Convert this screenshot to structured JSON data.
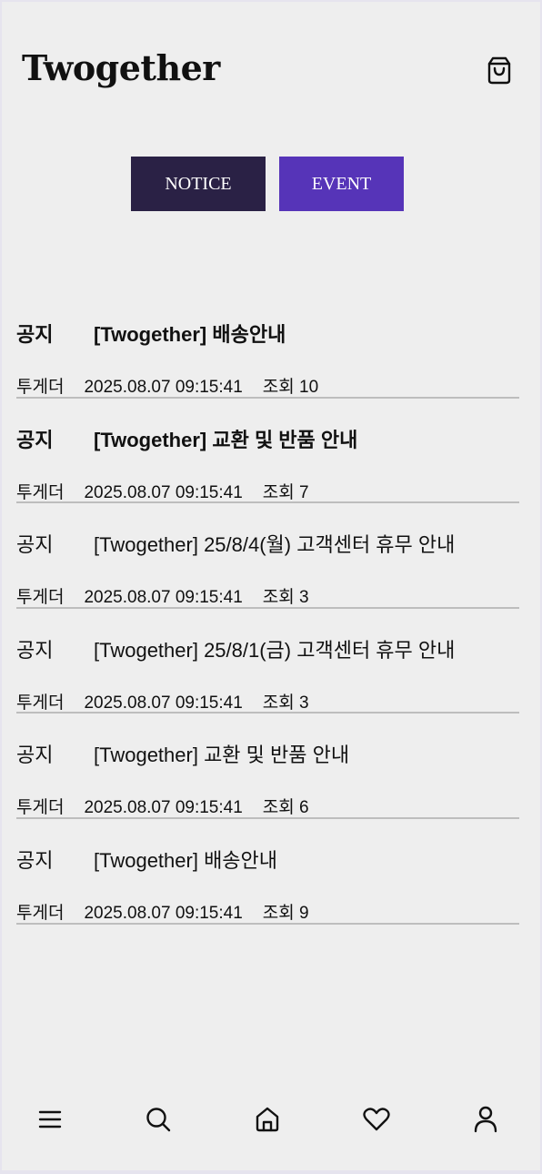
{
  "header": {
    "brand": "Twogether",
    "cart_icon": "shopping-bag-icon"
  },
  "tabs": [
    {
      "label": "NOTICE",
      "color": "#2a2145"
    },
    {
      "label": "EVENT",
      "color": "#5634b8"
    }
  ],
  "posts": [
    {
      "category": "공지",
      "title": "[Twogether] 배송안내",
      "writer": "투게더",
      "date": "2025.08.07 09:15:41",
      "views": "조회 10"
    },
    {
      "category": "공지",
      "title": "[Twogether] 교환 및 반품 안내",
      "writer": "투게더",
      "date": "2025.08.07 09:15:41",
      "views": "조회 7"
    },
    {
      "category": "공지",
      "title": "[Twogether] 25/8/4(월) 고객센터 휴무 안내",
      "writer": "투게더",
      "date": "2025.08.07 09:15:41",
      "views": "조회 3"
    },
    {
      "category": "공지",
      "title": "[Twogether] 25/8/1(금) 고객센터 휴무 안내",
      "writer": "투게더",
      "date": "2025.08.07 09:15:41",
      "views": "조회 3"
    },
    {
      "category": "공지",
      "title": "[Twogether] 교환 및 반품 안내",
      "writer": "투게더",
      "date": "2025.08.07 09:15:41",
      "views": "조회 6"
    },
    {
      "category": "공지",
      "title": "[Twogether] 배송안내",
      "writer": "투게더",
      "date": "2025.08.07 09:15:41",
      "views": "조회 9"
    }
  ],
  "bottom_nav": {
    "items": [
      "menu-icon",
      "search-icon",
      "home-icon",
      "heart-icon",
      "user-icon"
    ]
  }
}
